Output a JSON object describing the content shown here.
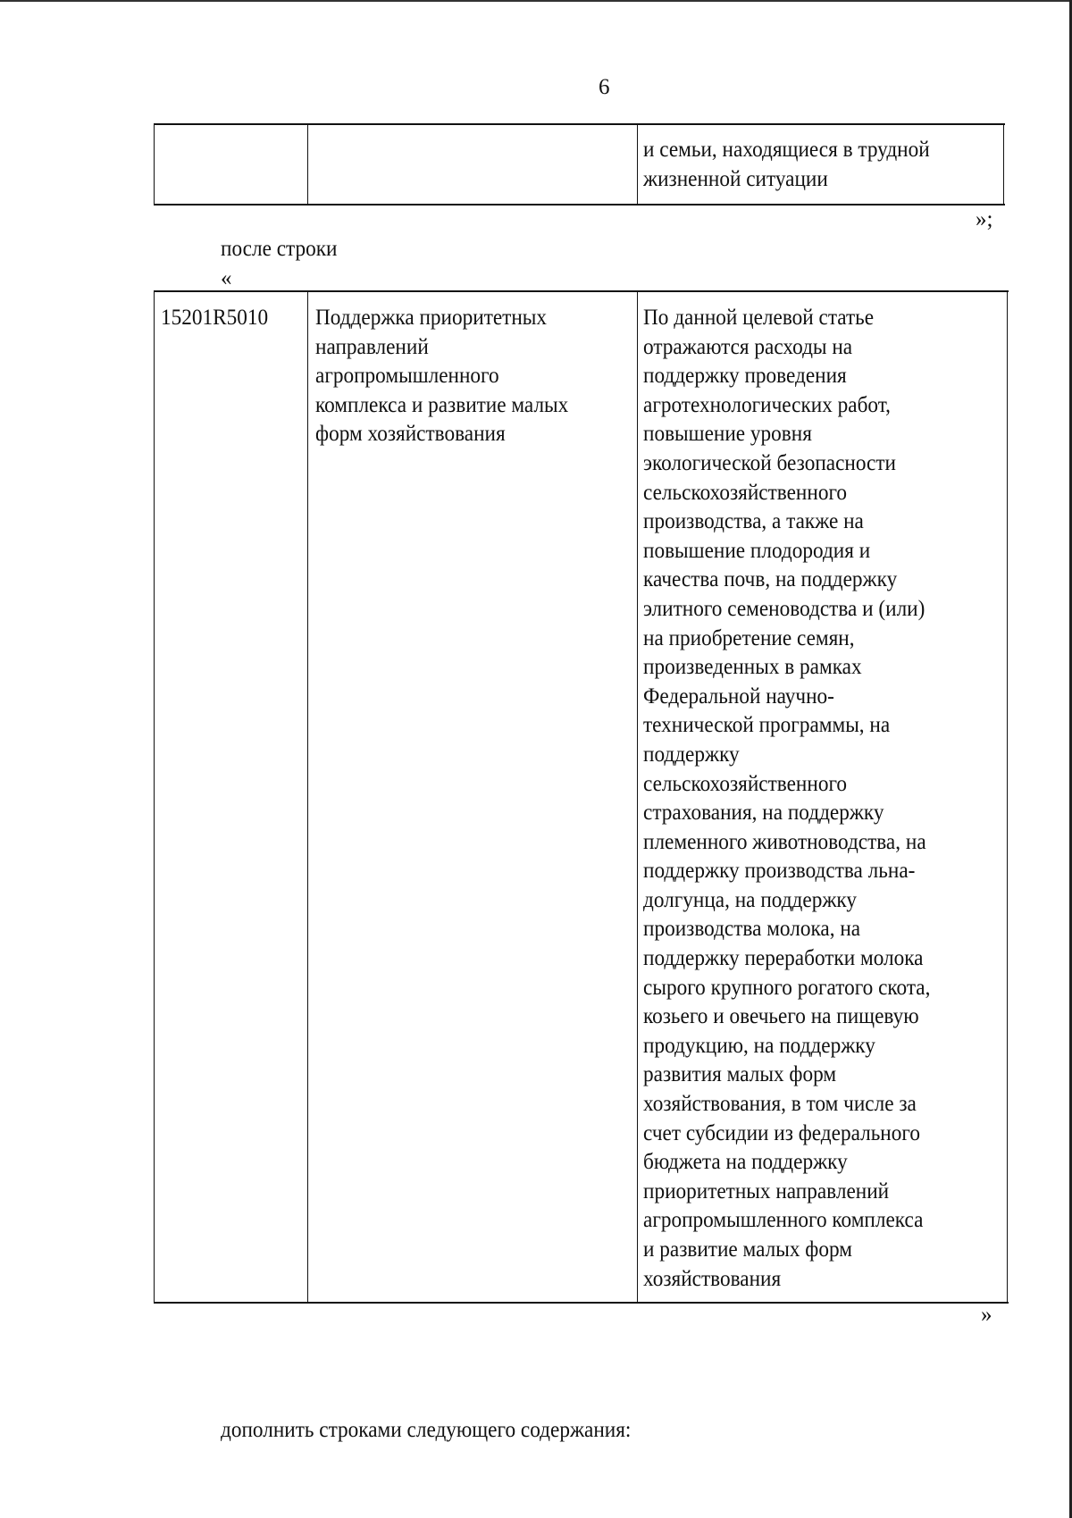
{
  "page_number": "6",
  "table1": {
    "row": {
      "code": "",
      "name": "",
      "description_lines": [
        "и семьи, находящиеся в трудной",
        "жизненной ситуации"
      ]
    }
  },
  "close_quote_1": "»;",
  "after_row_label": "после строки",
  "open_quote": "«",
  "table2": {
    "row": {
      "code": "15201R5010",
      "name_lines": [
        "Поддержка приоритетных",
        "направлений",
        "агропромышленного",
        "комплекса и развитие малых",
        "форм хозяйствования"
      ],
      "description_lines": [
        "По данной целевой статье",
        "отражаются расходы на",
        "поддержку проведения",
        "агротехнологических работ,",
        "повышение уровня",
        "экологической безопасности",
        "сельскохозяйственного",
        "производства, а также на",
        "повышение плодородия и",
        "качества почв, на поддержку",
        "элитного семеноводства и (или)",
        "на приобретение семян,",
        "произведенных в рамках",
        "Федеральной научно-",
        "технической программы, на",
        "поддержку",
        "сельскохозяйственного",
        "страхования, на поддержку",
        "племенного животноводства, на",
        "поддержку производства льна-",
        "долгунца, на поддержку",
        "производства молока, на",
        "поддержку переработки молока",
        "сырого крупного рогатого скота,",
        "козьего и овечьего на пищевую",
        "продукцию, на поддержку",
        "развития малых форм",
        "хозяйствования, в том числе за",
        "счет субсидии из федерального",
        "бюджета на поддержку",
        "приоритетных направлений",
        "агропромышленного комплекса",
        "и развитие малых форм",
        "хозяйствования"
      ]
    }
  },
  "close_quote_2": "»",
  "supplement_text": "дополнить строками следующего содержания:"
}
